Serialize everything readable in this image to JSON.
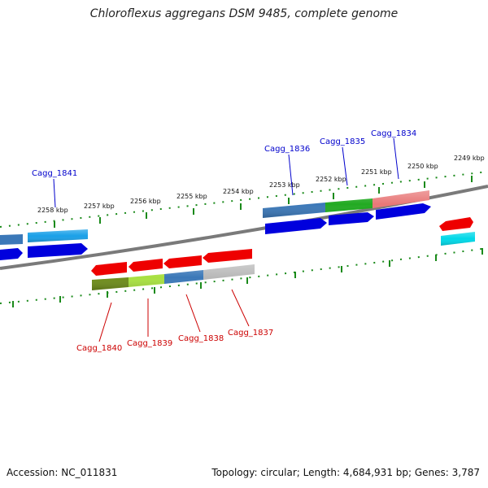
{
  "title": "Chloroflexus aggregans DSM 9485, complete genome",
  "footer": {
    "accession": "Accession: NC_011831",
    "topology": "Topology: circular; Length: 4,684,931 bp; Genes: 3,787"
  },
  "ticks": [
    "2249 kbp",
    "2250 kbp",
    "2251 kbp",
    "2252 kbp",
    "2253 kbp",
    "2254 kbp",
    "2255 kbp",
    "2256 kbp",
    "2257 kbp",
    "2258 kbp"
  ],
  "gene_labels": {
    "cagg_1834": "Cagg_1834",
    "cagg_1835": "Cagg_1835",
    "cagg_1836": "Cagg_1836",
    "cagg_1837": "Cagg_1837",
    "cagg_1838": "Cagg_1838",
    "cagg_1839": "Cagg_1839",
    "cagg_1840": "Cagg_1840",
    "cagg_1841": "Cagg_1841"
  },
  "colors": {
    "forward_label": "#0000cc",
    "reverse_label": "#cc0000",
    "tick": "#1a8a1a",
    "backbone": "#7a7a7a"
  }
}
